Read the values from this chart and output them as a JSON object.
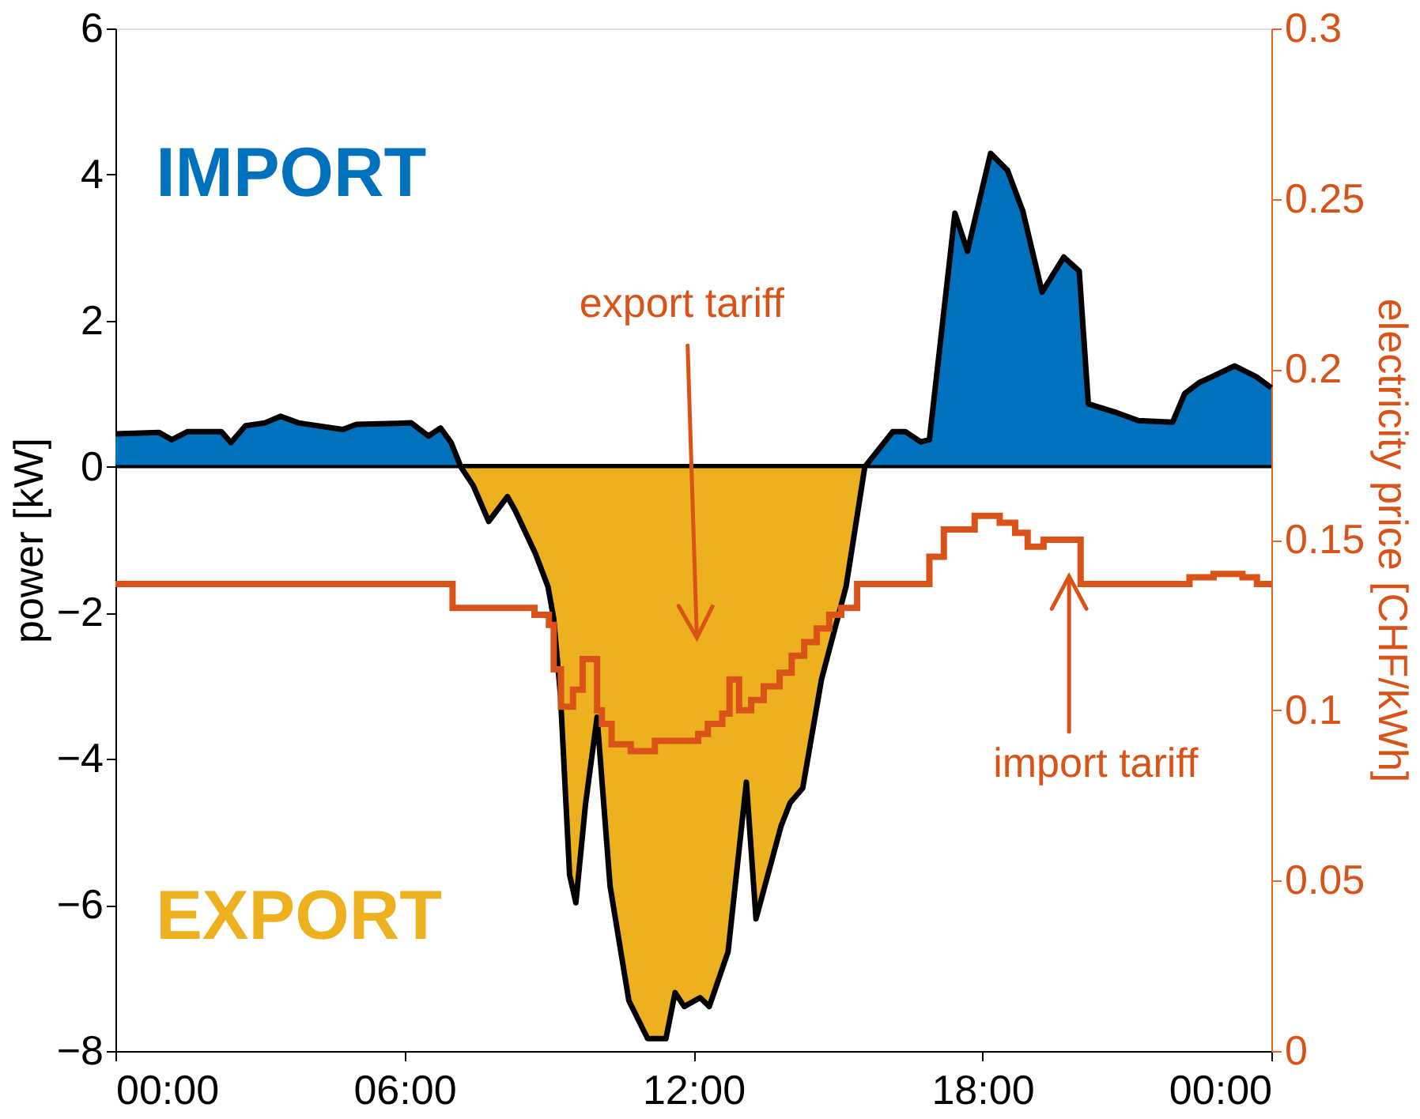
{
  "chart_data": {
    "type": "area",
    "xlim": [
      0,
      24
    ],
    "xticks": [
      {
        "value": 0,
        "label": "00:00"
      },
      {
        "value": 6,
        "label": "06:00"
      },
      {
        "value": 12,
        "label": "12:00"
      },
      {
        "value": 18,
        "label": "18:00"
      },
      {
        "value": 24,
        "label": "00:00"
      }
    ],
    "ylim": [
      -8,
      6
    ],
    "yticks": [
      -8,
      -6,
      -4,
      -2,
      0,
      2,
      4,
      6
    ],
    "y2lim": [
      0,
      0.3
    ],
    "y2ticks": [
      0,
      0.05,
      0.1,
      0.15,
      0.2,
      0.25,
      0.3
    ],
    "ylabel": "power [kW]",
    "y2label": "electricity price [CHF/kWh]",
    "grid": false,
    "ref_lines": [
      {
        "axis": "y",
        "value": 0,
        "color": "#000000"
      }
    ],
    "annotations": [
      "export tariff",
      {
        "text": "import tariff",
        "x": 19.8,
        "y": -1.5
      }
    ],
    "series": [
      {
        "name": "IMPORT",
        "color": "#0072bd",
        "x": [
          0,
          0.9,
          1.17,
          1.5,
          2.2,
          2.4,
          2.7,
          3.1,
          3.43,
          3.8,
          4.72,
          5,
          6.14,
          6.5,
          6.75,
          6.97,
          7.17,
          15.56,
          16.14,
          16.4,
          16.72,
          16.9,
          17.43,
          17.69,
          18.17,
          18.52,
          18.84,
          19.24,
          19.69,
          20.01,
          20.2,
          20.79,
          21.24,
          21.95,
          22.2,
          22.5,
          23.24,
          23.69,
          24
        ],
        "values": [
          0.45,
          0.47,
          0.37,
          0.48,
          0.48,
          0.33,
          0.56,
          0.6,
          0.69,
          0.6,
          0.51,
          0.58,
          0.6,
          0.42,
          0.53,
          0.33,
          0,
          0,
          0.48,
          0.48,
          0.34,
          0.37,
          3.47,
          2.95,
          4.29,
          4.06,
          3.5,
          2.39,
          2.87,
          2.68,
          0.86,
          0.74,
          0.63,
          0.61,
          1.0,
          1.15,
          1.38,
          1.23,
          1.08
        ]
      },
      {
        "name": "EXPORT",
        "color": "#edb120",
        "x": [
          7.17,
          7.43,
          7.75,
          8.14,
          8.3,
          8.72,
          8.98,
          9.1,
          9.24,
          9.43,
          9.56,
          9.76,
          10.0,
          10.27,
          10.66,
          11.05,
          11.43,
          11.62,
          11.81,
          12.14,
          12.33,
          12.72,
          13.1,
          13.3,
          13.82,
          14.01,
          14.27,
          14.66,
          15.17,
          15.56
        ],
        "values": [
          0,
          -0.26,
          -0.75,
          -0.41,
          -0.6,
          -1.19,
          -1.64,
          -2.08,
          -3.13,
          -5.59,
          -5.97,
          -4.62,
          -3.43,
          -5.74,
          -7.31,
          -7.83,
          -7.83,
          -7.2,
          -7.39,
          -7.27,
          -7.39,
          -6.64,
          -4.32,
          -6.19,
          -4.92,
          -4.6,
          -4.4,
          -2.91,
          -1.64,
          0
        ]
      },
      {
        "type": "step",
        "axis": "y2",
        "color": "#d95319",
        "x": [
          0,
          7.0,
          8.7,
          9.0,
          9.1,
          9.25,
          9.5,
          9.7,
          10.0,
          10.1,
          10.3,
          10.7,
          11.2,
          12.1,
          12.3,
          12.6,
          12.75,
          12.95,
          13.2,
          13.46,
          13.79,
          14.04,
          14.3,
          14.56,
          14.82,
          15.07,
          15.4,
          16.9,
          17.2,
          17.84,
          18.36,
          18.68,
          18.94,
          19.27,
          20.04,
          22.3,
          22.8,
          23.4,
          23.7,
          24
        ],
        "values": [
          0.137,
          0.13,
          0.128,
          0.125,
          0.112,
          0.101,
          0.106,
          0.115,
          0.1,
          0.096,
          0.09,
          0.088,
          0.091,
          0.093,
          0.096,
          0.099,
          0.109,
          0.1,
          0.103,
          0.107,
          0.111,
          0.116,
          0.12,
          0.124,
          0.128,
          0.13,
          0.137,
          0.145,
          0.153,
          0.157,
          0.155,
          0.152,
          0.148,
          0.15,
          0.137,
          0.139,
          0.14,
          0.139,
          0.137,
          0.137
        ]
      }
    ]
  }
}
